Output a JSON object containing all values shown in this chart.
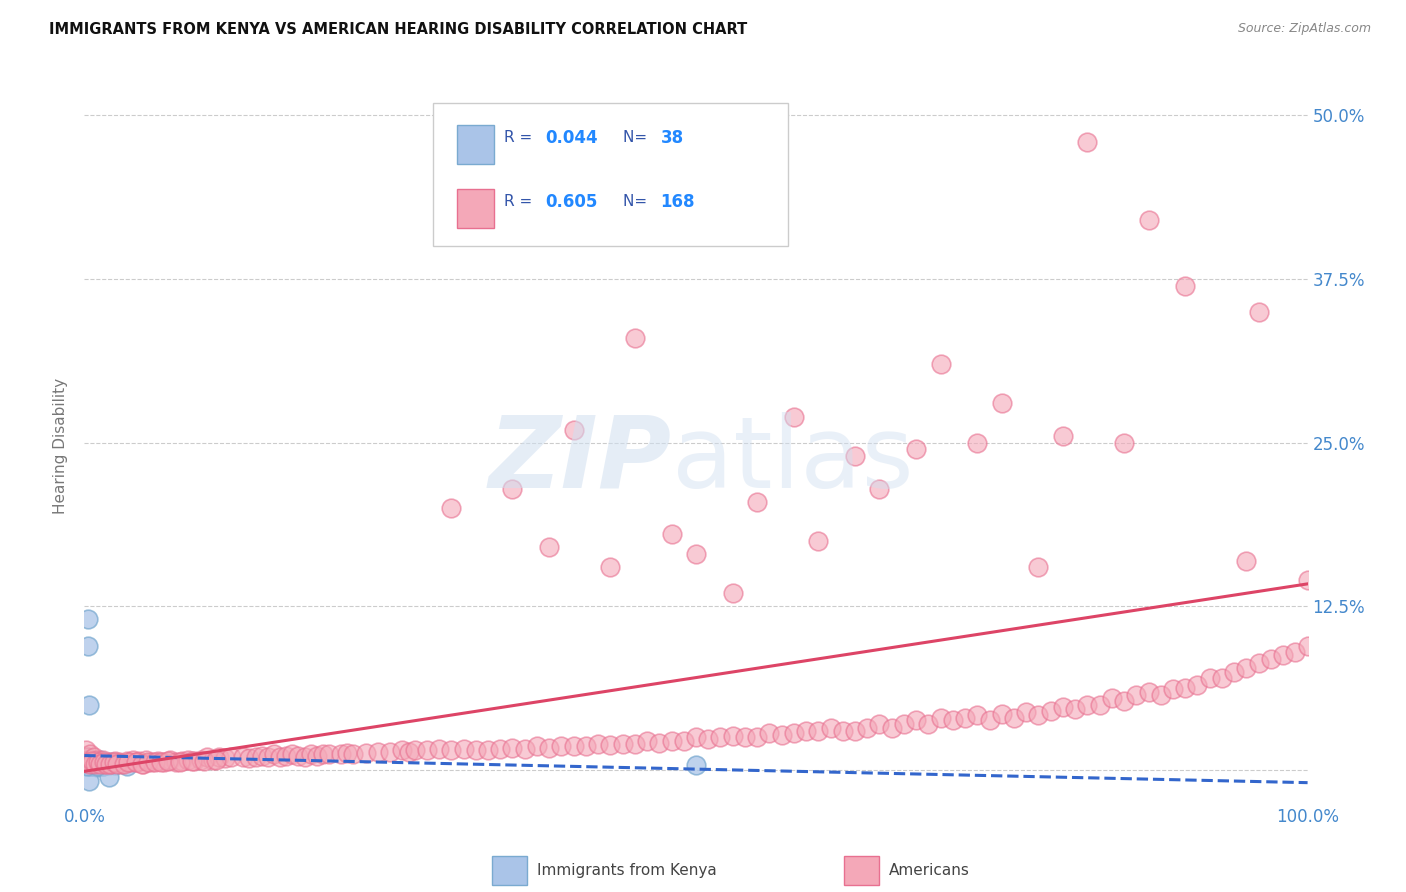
{
  "title": "IMMIGRANTS FROM KENYA VS AMERICAN HEARING DISABILITY CORRELATION CHART",
  "source": "Source: ZipAtlas.com",
  "ylabel": "Hearing Disability",
  "xlim": [
    0.0,
    1.0
  ],
  "ylim": [
    -0.025,
    0.52
  ],
  "x_ticks": [
    0.0,
    0.25,
    0.5,
    0.75,
    1.0
  ],
  "x_tick_labels": [
    "0.0%",
    "",
    "",
    "",
    "100.0%"
  ],
  "y_ticks": [
    0.0,
    0.125,
    0.25,
    0.375,
    0.5
  ],
  "y_tick_labels": [
    "",
    "12.5%",
    "25.0%",
    "37.5%",
    "50.0%"
  ],
  "kenya_R": "0.044",
  "kenya_N": "38",
  "americans_R": "0.605",
  "americans_N": "168",
  "kenya_color": "#aac4e8",
  "americans_color": "#f4a8b8",
  "kenya_edge_color": "#7aaad0",
  "americans_edge_color": "#e87090",
  "kenya_line_color": "#3366cc",
  "americans_line_color": "#dd4466",
  "background_color": "#ffffff",
  "grid_color": "#cccccc",
  "title_color": "#111111",
  "axis_label_color": "#4488cc",
  "kenya_x": [
    0.001,
    0.002,
    0.003,
    0.004,
    0.005,
    0.006,
    0.007,
    0.008,
    0.009,
    0.01,
    0.011,
    0.012,
    0.013,
    0.015,
    0.017,
    0.02,
    0.022,
    0.005,
    0.003,
    0.002,
    0.004,
    0.006,
    0.008,
    0.01,
    0.003,
    0.004,
    0.005,
    0.007,
    0.035,
    0.5,
    0.003,
    0.025,
    0.004,
    0.002,
    0.015,
    0.02,
    0.01,
    0.006
  ],
  "kenya_y": [
    0.005,
    0.01,
    0.004,
    0.006,
    0.008,
    0.003,
    0.005,
    0.007,
    0.004,
    0.002,
    0.006,
    0.004,
    0.008,
    0.003,
    0.005,
    0.004,
    0.006,
    0.003,
    0.007,
    0.008,
    0.005,
    0.003,
    0.005,
    0.004,
    0.095,
    0.05,
    0.003,
    0.004,
    0.003,
    0.004,
    0.115,
    0.004,
    -0.008,
    0.003,
    0.003,
    -0.005,
    0.003,
    0.005
  ],
  "americans_x": [
    0.001,
    0.002,
    0.003,
    0.005,
    0.007,
    0.008,
    0.01,
    0.012,
    0.015,
    0.017,
    0.02,
    0.022,
    0.025,
    0.028,
    0.03,
    0.035,
    0.038,
    0.04,
    0.043,
    0.045,
    0.048,
    0.05,
    0.055,
    0.06,
    0.065,
    0.07,
    0.075,
    0.08,
    0.085,
    0.09,
    0.095,
    0.1,
    0.105,
    0.11,
    0.115,
    0.12,
    0.13,
    0.135,
    0.14,
    0.145,
    0.15,
    0.155,
    0.16,
    0.165,
    0.17,
    0.175,
    0.18,
    0.185,
    0.19,
    0.195,
    0.2,
    0.21,
    0.215,
    0.22,
    0.23,
    0.24,
    0.25,
    0.26,
    0.265,
    0.27,
    0.28,
    0.29,
    0.3,
    0.31,
    0.32,
    0.33,
    0.34,
    0.35,
    0.36,
    0.37,
    0.38,
    0.39,
    0.4,
    0.41,
    0.42,
    0.43,
    0.44,
    0.45,
    0.46,
    0.47,
    0.48,
    0.49,
    0.5,
    0.51,
    0.52,
    0.53,
    0.54,
    0.55,
    0.56,
    0.57,
    0.58,
    0.59,
    0.6,
    0.61,
    0.62,
    0.63,
    0.64,
    0.65,
    0.66,
    0.67,
    0.68,
    0.69,
    0.7,
    0.71,
    0.72,
    0.73,
    0.74,
    0.75,
    0.76,
    0.77,
    0.78,
    0.79,
    0.8,
    0.81,
    0.82,
    0.83,
    0.84,
    0.85,
    0.86,
    0.87,
    0.88,
    0.89,
    0.9,
    0.91,
    0.92,
    0.93,
    0.94,
    0.95,
    0.96,
    0.97,
    0.98,
    0.99,
    1.0,
    0.002,
    0.004,
    0.006,
    0.009,
    0.011,
    0.013,
    0.016,
    0.018,
    0.021,
    0.024,
    0.027,
    0.032,
    0.036,
    0.042,
    0.047,
    0.052,
    0.058,
    0.063,
    0.068,
    0.078,
    0.088,
    0.098,
    0.108,
    0.3,
    0.4,
    0.5,
    0.6,
    0.7,
    0.8,
    0.9,
    0.35,
    0.45,
    0.55,
    0.65,
    0.75,
    0.85,
    0.95
  ],
  "americans_y": [
    0.015,
    0.01,
    0.008,
    0.012,
    0.006,
    0.01,
    0.008,
    0.006,
    0.008,
    0.005,
    0.006,
    0.005,
    0.007,
    0.006,
    0.005,
    0.007,
    0.006,
    0.008,
    0.006,
    0.007,
    0.005,
    0.008,
    0.006,
    0.007,
    0.006,
    0.008,
    0.006,
    0.007,
    0.008,
    0.007,
    0.008,
    0.01,
    0.008,
    0.01,
    0.009,
    0.01,
    0.01,
    0.009,
    0.01,
    0.011,
    0.01,
    0.012,
    0.01,
    0.011,
    0.012,
    0.011,
    0.01,
    0.012,
    0.011,
    0.012,
    0.012,
    0.012,
    0.013,
    0.012,
    0.013,
    0.014,
    0.014,
    0.015,
    0.014,
    0.015,
    0.015,
    0.016,
    0.015,
    0.016,
    0.015,
    0.015,
    0.016,
    0.017,
    0.016,
    0.018,
    0.017,
    0.018,
    0.018,
    0.018,
    0.02,
    0.019,
    0.02,
    0.02,
    0.022,
    0.021,
    0.022,
    0.022,
    0.025,
    0.024,
    0.025,
    0.026,
    0.025,
    0.025,
    0.028,
    0.027,
    0.028,
    0.03,
    0.03,
    0.032,
    0.03,
    0.03,
    0.032,
    0.035,
    0.032,
    0.035,
    0.038,
    0.035,
    0.04,
    0.038,
    0.04,
    0.042,
    0.038,
    0.043,
    0.04,
    0.044,
    0.042,
    0.045,
    0.048,
    0.047,
    0.05,
    0.05,
    0.055,
    0.053,
    0.057,
    0.06,
    0.057,
    0.062,
    0.063,
    0.065,
    0.07,
    0.07,
    0.075,
    0.078,
    0.082,
    0.085,
    0.088,
    0.09,
    0.095,
    0.006,
    0.005,
    0.007,
    0.005,
    0.006,
    0.005,
    0.006,
    0.005,
    0.005,
    0.006,
    0.005,
    0.005,
    0.006,
    0.006,
    0.005,
    0.006,
    0.006,
    0.006,
    0.007,
    0.006,
    0.007,
    0.007,
    0.008,
    0.2,
    0.26,
    0.165,
    0.175,
    0.31,
    0.255,
    0.37,
    0.215,
    0.33,
    0.205,
    0.215,
    0.28,
    0.25,
    0.16
  ],
  "americans_y_outliers_x": [
    0.82,
    0.87,
    0.96,
    1.0,
    0.58,
    0.63,
    0.68,
    0.73,
    0.78,
    0.48,
    0.43,
    0.53,
    0.38
  ],
  "americans_y_outliers_y": [
    0.48,
    0.42,
    0.35,
    0.145,
    0.27,
    0.24,
    0.245,
    0.25,
    0.155,
    0.18,
    0.155,
    0.135,
    0.17
  ]
}
